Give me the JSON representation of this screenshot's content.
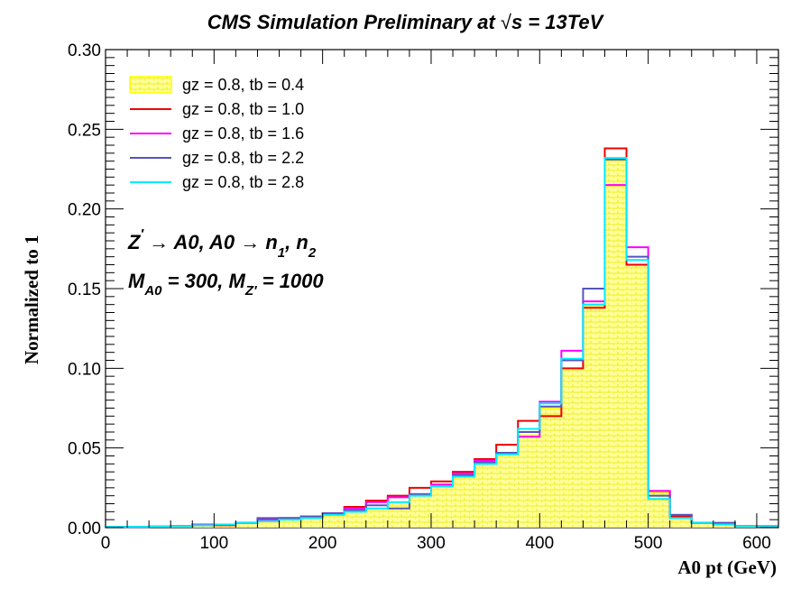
{
  "chart_data": {
    "type": "histogram",
    "title": "CMS Simulation Preliminary at √s = 13TeV",
    "title_parts": {
      "main": "CMS Simulation Preliminary at ",
      "sqrt": "√",
      "s": "s",
      "rest": " = 13TeV"
    },
    "xlabel": "A0 pt (GeV)",
    "ylabel": "Normalized to 1",
    "xlim": [
      0,
      620
    ],
    "ylim": [
      0,
      0.3
    ],
    "xticks": [
      0,
      100,
      200,
      300,
      400,
      500,
      600
    ],
    "xtick_labels": [
      "0",
      "100",
      "200",
      "300",
      "400",
      "500",
      "600"
    ],
    "yticks": [
      0.0,
      0.05,
      0.1,
      0.15,
      0.2,
      0.25,
      0.3
    ],
    "ytick_labels": [
      "0.00",
      "0.05",
      "0.10",
      "0.15",
      "0.20",
      "0.25",
      "0.30"
    ],
    "bin_width": 20,
    "bin_edges_start": 0,
    "grid": false,
    "legend_position": "top-left",
    "annotations": [
      {
        "id": "process",
        "parts": [
          "Z",
          "′",
          " → A0, A0  → n",
          "1",
          ", n",
          "2"
        ]
      },
      {
        "id": "masses",
        "parts": [
          "M",
          "A0",
          " = 300, M",
          "Z′",
          " = 1000"
        ]
      }
    ],
    "series": [
      {
        "name": "gz = 0.8, tb = 0.4",
        "color": "#ffff00",
        "style": "filled-hatched",
        "values": [
          0.0005,
          0.0005,
          0.0008,
          0.001,
          0.0015,
          0.002,
          0.003,
          0.004,
          0.005,
          0.006,
          0.008,
          0.01,
          0.012,
          0.016,
          0.02,
          0.026,
          0.032,
          0.04,
          0.046,
          0.058,
          0.075,
          0.1,
          0.14,
          0.23,
          0.165,
          0.022,
          0.006,
          0.003,
          0.002,
          0.001,
          0.001
        ]
      },
      {
        "name": "gz = 0.8, tb = 1.0",
        "color": "#ee0000",
        "style": "line",
        "values": [
          0.0005,
          0.0005,
          0.0008,
          0.001,
          0.0015,
          0.0015,
          0.003,
          0.005,
          0.006,
          0.007,
          0.009,
          0.013,
          0.017,
          0.02,
          0.025,
          0.029,
          0.035,
          0.043,
          0.052,
          0.067,
          0.07,
          0.1,
          0.138,
          0.238,
          0.165,
          0.023,
          0.007,
          0.003,
          0.002,
          0.001,
          0.0005
        ]
      },
      {
        "name": "gz = 0.8, tb = 1.6",
        "color": "#ff00ff",
        "style": "line",
        "values": [
          0.0005,
          0.0005,
          0.0008,
          0.001,
          0.002,
          0.002,
          0.003,
          0.005,
          0.006,
          0.007,
          0.009,
          0.012,
          0.016,
          0.019,
          0.021,
          0.027,
          0.034,
          0.042,
          0.047,
          0.057,
          0.079,
          0.111,
          0.142,
          0.215,
          0.176,
          0.023,
          0.008,
          0.003,
          0.003,
          0.001,
          0.001
        ]
      },
      {
        "name": "gz = 0.8, tb = 2.2",
        "color": "#5555bb",
        "style": "line",
        "values": [
          0.0005,
          0.0005,
          0.0008,
          0.001,
          0.0015,
          0.002,
          0.003,
          0.006,
          0.006,
          0.007,
          0.009,
          0.011,
          0.014,
          0.012,
          0.021,
          0.026,
          0.033,
          0.041,
          0.047,
          0.06,
          0.076,
          0.105,
          0.15,
          0.231,
          0.17,
          0.02,
          0.008,
          0.003,
          0.003,
          0.001,
          0.001
        ]
      },
      {
        "name": "gz = 0.8, tb = 2.8",
        "color": "#00eeff",
        "style": "line",
        "values": [
          0.0005,
          0.0005,
          0.0008,
          0.001,
          0.0015,
          0.002,
          0.003,
          0.004,
          0.005,
          0.006,
          0.008,
          0.01,
          0.012,
          0.016,
          0.02,
          0.026,
          0.032,
          0.04,
          0.046,
          0.062,
          0.078,
          0.106,
          0.14,
          0.232,
          0.168,
          0.018,
          0.006,
          0.003,
          0.002,
          0.001,
          0.001
        ]
      }
    ]
  }
}
